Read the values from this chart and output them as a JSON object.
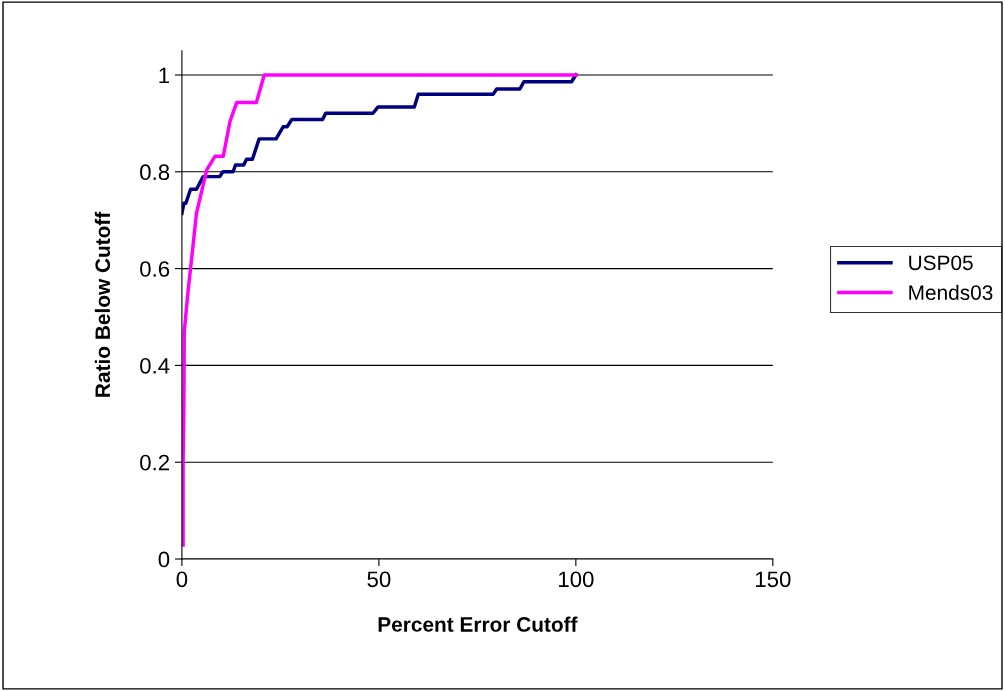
{
  "chart_data": {
    "type": "line",
    "xlabel": "Percent Error Cutoff",
    "ylabel": "Ratio Below Cutoff",
    "xlim": [
      0,
      150
    ],
    "xticks": [
      0,
      50,
      100,
      150
    ],
    "ylim": [
      0,
      1.05
    ],
    "yticks": [
      0,
      0.2,
      0.4,
      0.6,
      0.8,
      1
    ],
    "grid": "y",
    "legend": "right",
    "line_style": "solid",
    "marker": "none",
    "series": [
      {
        "name": "USP05",
        "color": "#000080",
        "x": [
          0,
          0.5,
          1,
          2.2,
          3.7,
          5.4,
          9.6,
          10.4,
          13,
          13.6,
          15.7,
          16.4,
          17.9,
          19.6,
          23.9,
          25.7,
          26.7,
          27.9,
          35.7,
          36.5,
          48.5,
          49.8,
          59,
          60,
          79,
          79.9,
          85.8,
          86.8,
          98.9,
          100
        ],
        "values": [
          0.714,
          0.735,
          0.735,
          0.764,
          0.764,
          0.79,
          0.79,
          0.8,
          0.8,
          0.814,
          0.814,
          0.826,
          0.826,
          0.868,
          0.868,
          0.893,
          0.893,
          0.908,
          0.908,
          0.921,
          0.921,
          0.934,
          0.934,
          0.96,
          0.96,
          0.971,
          0.971,
          0.986,
          0.986,
          1
        ]
      },
      {
        "name": "Mends03",
        "color": "#ff00ff",
        "x": [
          0.3,
          0.3,
          0.5,
          0.6,
          1.6,
          2.7,
          3.7,
          6.3,
          8.4,
          10.5,
          12.2,
          13.9,
          18.9,
          20.9,
          100
        ],
        "values": [
          0.029,
          0.201,
          0.315,
          0.47,
          0.556,
          0.638,
          0.714,
          0.804,
          0.832,
          0.832,
          0.904,
          0.943,
          0.943,
          1,
          1
        ]
      }
    ]
  }
}
